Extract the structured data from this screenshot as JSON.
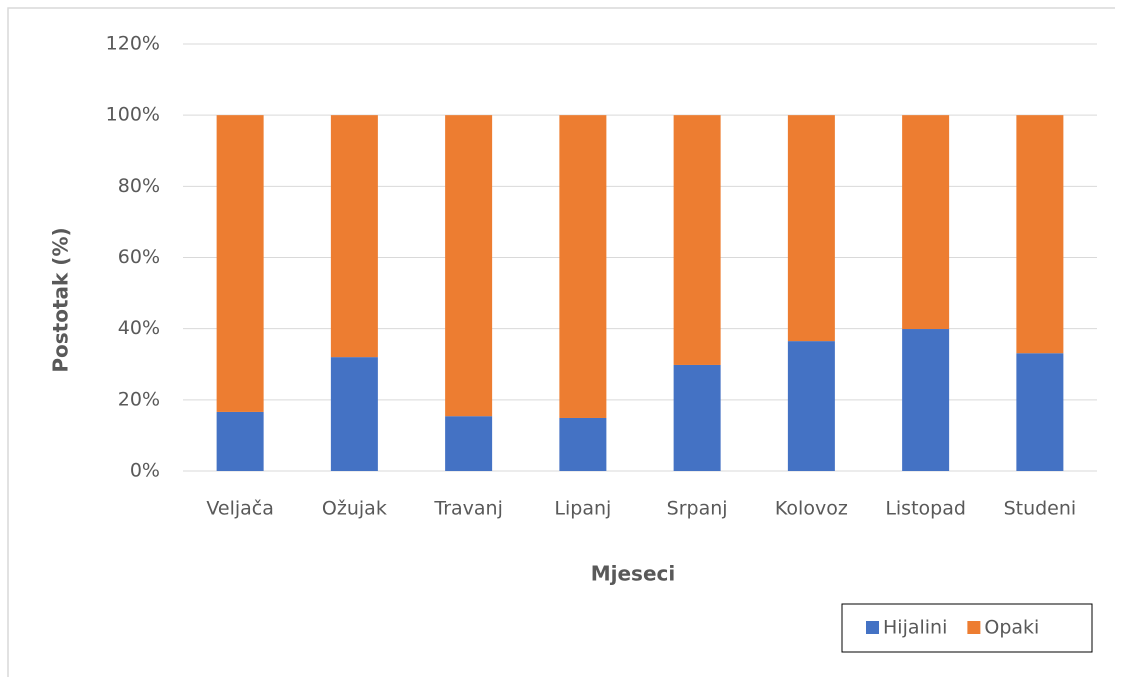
{
  "chart_data": {
    "type": "stacked_bar",
    "xlabel": "Mjeseci",
    "ylabel": "Postotak (%)",
    "categories": [
      "Veljača",
      "Ožujak",
      "Travanj",
      "Lipanj",
      "Srpanj",
      "Kolovoz",
      "Listopad",
      "Studeni"
    ],
    "series": [
      {
        "name": "Hijalini",
        "color": "#4472c4",
        "values": [
          16.6,
          32.0,
          15.4,
          14.9,
          29.8,
          36.5,
          39.9,
          33.1
        ]
      },
      {
        "name": "Opaki",
        "color": "#ed7d31",
        "values": [
          83.4,
          68.0,
          84.6,
          85.1,
          70.2,
          63.5,
          60.1,
          66.9
        ]
      }
    ],
    "ylim": [
      0,
      120
    ],
    "yticks": [
      {
        "value": 0,
        "label": "0%"
      },
      {
        "value": 20,
        "label": "20%"
      },
      {
        "value": 40,
        "label": "40%"
      },
      {
        "value": 60,
        "label": "60%"
      },
      {
        "value": 80,
        "label": "80%"
      },
      {
        "value": 100,
        "label": "100%"
      },
      {
        "value": 120,
        "label": "120%"
      }
    ],
    "grid": true,
    "legend": "bottom-right"
  }
}
